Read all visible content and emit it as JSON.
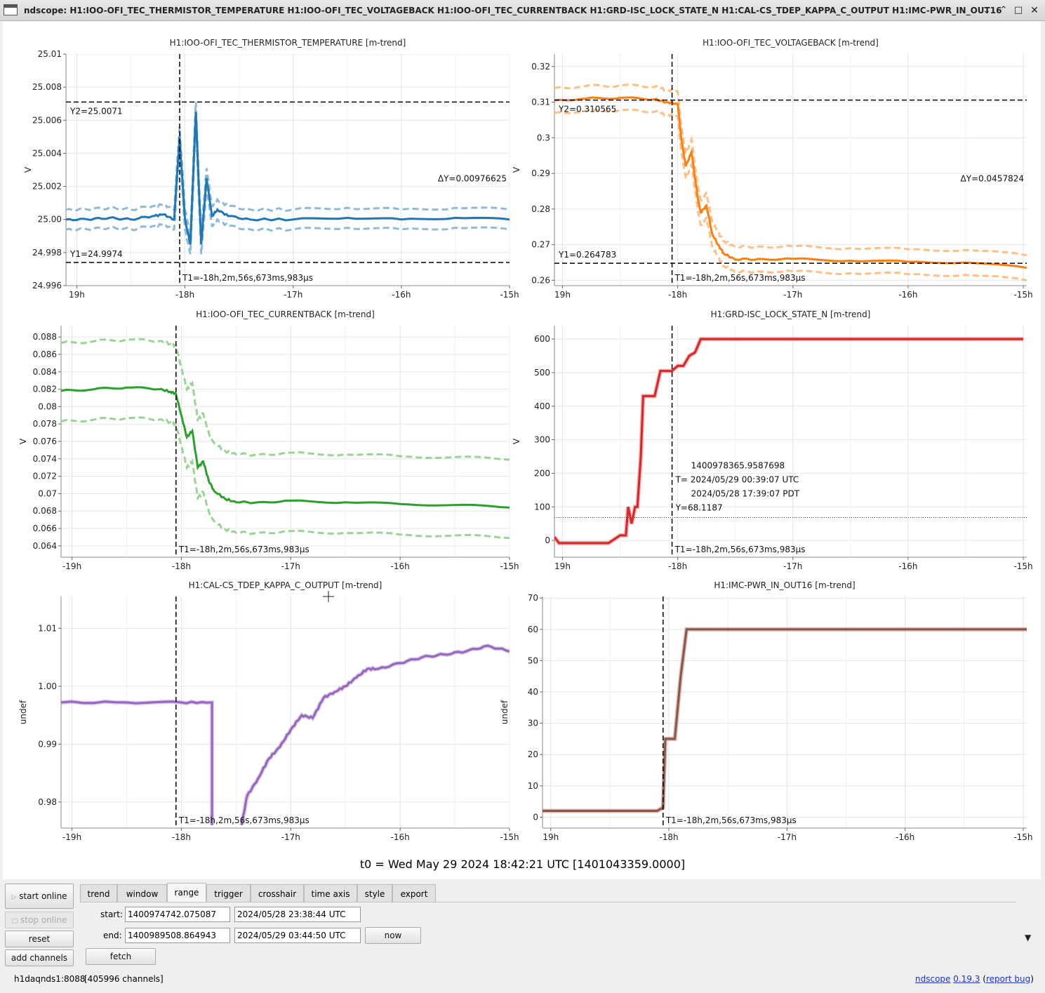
{
  "window": {
    "title": "ndscope: H1:IOO-OFI_TEC_THERMISTOR_TEMPERATURE H1:IOO-OFI_TEC_VOLTAGEBACK H1:IOO-OFI_TEC_CURRENTBACK H1:GRD-ISC_LOCK_STATE_N H1:CAL-CS_TDEP_KAPPA_C_OUTPUT H1:IMC-PWR_IN_OUT16",
    "minimize_icon": "chevron-down-icon",
    "maximize_icon": "square-icon",
    "close_icon": "close-icon"
  },
  "cursor_label": "T1=-18h,2m,56s,673ms,983µs",
  "x_ticks": [
    "-19h",
    "-18h",
    "-17h",
    "-16h",
    "-15h"
  ],
  "x_ticks_alt": [
    "19h",
    "-18h",
    "-17h",
    "-16h",
    "-15h"
  ],
  "chart_data": [
    {
      "type": "line",
      "title": "H1:IOO-OFI_TEC_THERMISTOR_TEMPERATURE [m-trend]",
      "ylabel": "V",
      "ylim": [
        24.996,
        25.01
      ],
      "y_ticks": [
        "24.996",
        "24.998",
        "25.00",
        "25.002",
        "25.004",
        "25.006",
        "25.008",
        "25.01"
      ],
      "y_tick_values": [
        24.996,
        24.998,
        25.0,
        25.002,
        25.004,
        25.006,
        25.008,
        25.01
      ],
      "xlim": [
        -19.1,
        -15.0
      ],
      "color": "#1f77b4",
      "band_color": "#8fbbd9",
      "x": [
        -19.1,
        -18.9,
        -18.7,
        -18.5,
        -18.3,
        -18.2,
        -18.1,
        -18.05,
        -18.0,
        -17.95,
        -17.9,
        -17.85,
        -17.8,
        -17.75,
        -17.7,
        -17.6,
        -17.4,
        -17.0,
        -16.5,
        -16.0,
        -15.5,
        -15.0
      ],
      "values": [
        25.0,
        25.0,
        25.0001,
        25.0,
        25.0002,
        25.0003,
        25.0,
        25.005,
        25.0,
        24.9985,
        25.0065,
        24.9985,
        25.0025,
        25.0002,
        25.0006,
        25.0002,
        25.0,
        25.0,
        25.0001,
        25.0,
        25.0001,
        25.0
      ],
      "band": 0.0006,
      "cursors": {
        "t1": -18.049,
        "y1": 24.9974,
        "y2": 25.0071
      },
      "annotations": {
        "y1": "Y1=24.9974",
        "y2": "Y2=25.0071",
        "dy": "ΔY=0.00976625"
      },
      "x_tick_labels": [
        "19h",
        "-18h",
        "-17h",
        "-16h",
        "-15h"
      ]
    },
    {
      "type": "line",
      "title": "H1:IOO-OFI_TEC_VOLTAGEBACK [m-trend]",
      "ylabel": "V",
      "ylim": [
        0.2585,
        0.3235
      ],
      "y_ticks": [
        "0.26",
        "0.27",
        "0.28",
        "0.29",
        "0.3",
        "0.31",
        "0.32"
      ],
      "y_tick_values": [
        0.26,
        0.27,
        0.28,
        0.29,
        0.3,
        0.31,
        0.32
      ],
      "xlim": [
        -19.07,
        -14.97
      ],
      "color": "#ff7f0e",
      "band_color": "#ffbf86",
      "x": [
        -19.07,
        -18.8,
        -18.5,
        -18.2,
        -18.1,
        -18.0,
        -17.97,
        -17.93,
        -17.88,
        -17.83,
        -17.8,
        -17.75,
        -17.7,
        -17.65,
        -17.6,
        -17.5,
        -17.3,
        -17.0,
        -16.5,
        -16.0,
        -15.5,
        -14.97
      ],
      "values": [
        0.3105,
        0.311,
        0.3112,
        0.3108,
        0.31,
        0.3095,
        0.3,
        0.292,
        0.296,
        0.284,
        0.279,
        0.281,
        0.273,
        0.27,
        0.2675,
        0.2658,
        0.266,
        0.266,
        0.2655,
        0.2652,
        0.265,
        0.2635
      ],
      "band": 0.0035,
      "cursors": {
        "t1": -18.049,
        "y1": 0.264783,
        "y2": 0.310565
      },
      "annotations": {
        "y1": "Y1=0.264783",
        "y2": "Y2=0.310565",
        "dy": "ΔY=0.0457824"
      },
      "x_tick_labels": [
        "19h",
        "-18h",
        "-17h",
        "-16h",
        "-15h"
      ]
    },
    {
      "type": "line",
      "title": "H1:IOO-OFI_TEC_CURRENTBACK [m-trend]",
      "ylabel": "V",
      "ylim": [
        0.0627,
        0.0893
      ],
      "y_ticks": [
        "0.064",
        "0.066",
        "0.068",
        "0.07",
        "0.072",
        "0.074",
        "0.076",
        "0.078",
        "0.08",
        "0.082",
        "0.084",
        "0.086",
        "0.088"
      ],
      "y_tick_values": [
        0.064,
        0.066,
        0.068,
        0.07,
        0.072,
        0.074,
        0.076,
        0.078,
        0.08,
        0.082,
        0.084,
        0.086,
        0.088
      ],
      "xlim": [
        -19.1,
        -15.0
      ],
      "color": "#2ca02c",
      "band_color": "#98d595",
      "x": [
        -19.1,
        -18.8,
        -18.5,
        -18.2,
        -18.1,
        -18.05,
        -18.0,
        -17.95,
        -17.9,
        -17.85,
        -17.8,
        -17.75,
        -17.7,
        -17.6,
        -17.5,
        -17.3,
        -17.0,
        -16.5,
        -16.0,
        -15.5,
        -15.0
      ],
      "values": [
        0.0818,
        0.082,
        0.0822,
        0.082,
        0.0817,
        0.0815,
        0.079,
        0.0765,
        0.0772,
        0.073,
        0.0737,
        0.0715,
        0.0703,
        0.0694,
        0.069,
        0.069,
        0.0692,
        0.069,
        0.0688,
        0.0687,
        0.0684
      ],
      "band_upper": 0.0055,
      "band_lower": 0.0035,
      "cursors": {
        "t1": -18.049
      },
      "x_tick_labels": [
        "-19h",
        "-18h",
        "-17h",
        "-16h",
        "-15h"
      ]
    },
    {
      "type": "line",
      "title": "H1:GRD-ISC_LOCK_STATE_N [m-trend]",
      "ylabel": "V",
      "ylim": [
        -50,
        640
      ],
      "y_ticks": [
        "0",
        "100",
        "200",
        "300",
        "400",
        "500",
        "600"
      ],
      "y_tick_values": [
        0,
        100,
        200,
        300,
        400,
        500,
        600
      ],
      "xlim": [
        -19.07,
        -14.97
      ],
      "color": "#d62728",
      "band_color": "#eb9293",
      "x": [
        -19.07,
        -19.03,
        -19.0,
        -18.6,
        -18.5,
        -18.45,
        -18.43,
        -18.4,
        -18.37,
        -18.35,
        -18.32,
        -18.3,
        -18.27,
        -18.25,
        -18.2,
        -18.15,
        -18.1,
        -18.05,
        -18.0,
        -17.95,
        -17.9,
        -17.85,
        -17.8,
        -17.75,
        -17.7,
        -17.65,
        -15.0
      ],
      "values": [
        10,
        -8,
        -8,
        -8,
        15,
        15,
        100,
        50,
        100,
        100,
        250,
        430,
        430,
        430,
        430,
        505,
        505,
        505,
        520,
        520,
        550,
        560,
        600,
        600,
        600,
        600,
        600
      ],
      "cursors": {
        "t1": -18.049,
        "crosshair_y": 68.1187
      },
      "crosshair": {
        "gps": "1400978365.9587698",
        "utc": "T= 2024/05/29 00:39:07 UTC",
        "local": "2024/05/28 17:39:07 PDT",
        "y": "Y=68.1187"
      },
      "x_tick_labels": [
        "19h",
        "-18h",
        "-17h",
        "-16h",
        "-15h"
      ]
    },
    {
      "type": "line",
      "title": "H1:CAL-CS_TDEP_KAPPA_C_OUTPUT [m-trend]",
      "ylabel": "undef",
      "ylim": [
        0.9755,
        1.0155
      ],
      "y_ticks": [
        "0.98",
        "0.99",
        "1.00",
        "1.01"
      ],
      "y_tick_values": [
        0.98,
        0.99,
        1.0,
        1.01
      ],
      "xlim": [
        -19.1,
        -15.0
      ],
      "color": "#9467bd",
      "band_color": "#c9b1de",
      "x": [
        -19.1,
        -18.5,
        -18.0,
        -17.72,
        -17.72,
        -17.7,
        -17.45,
        -17.4,
        -17.3,
        -17.2,
        -17.1,
        -17.0,
        -16.9,
        -16.8,
        -16.7,
        -16.6,
        -16.5,
        -16.4,
        -16.3,
        -16.2,
        -16.0,
        -15.8,
        -15.6,
        -15.4,
        -15.2,
        -15.0
      ],
      "values": [
        0.9972,
        0.9972,
        0.9972,
        0.9972,
        0.976,
        null,
        0.976,
        0.981,
        0.984,
        0.9875,
        0.9895,
        0.9925,
        0.995,
        0.9945,
        0.998,
        0.999,
        1.0,
        1.0015,
        1.003,
        1.003,
        1.004,
        1.005,
        1.0055,
        1.006,
        1.007,
        1.006
      ],
      "cursors": {
        "t1": -18.049
      },
      "x_tick_labels": [
        "-19h",
        "-18h",
        "-17h",
        "-16h",
        "-15h"
      ]
    },
    {
      "type": "line",
      "title": "H1:IMC-PWR_IN_OUT16 [m-trend]",
      "ylabel": "undef",
      "ylim": [
        -3.5,
        70.5
      ],
      "y_ticks": [
        "0",
        "10",
        "20",
        "30",
        "40",
        "50",
        "60",
        "70"
      ],
      "y_tick_values": [
        0,
        10,
        20,
        30,
        40,
        50,
        60,
        70
      ],
      "xlim": [
        -19.07,
        -14.97
      ],
      "color": "#8c564b",
      "band_color": "#c49c94",
      "x": [
        -19.07,
        -18.5,
        -18.1,
        -18.05,
        -18.03,
        -18.0,
        -17.95,
        -17.9,
        -17.85,
        -17.8,
        -17.5,
        -17.0,
        -16.5,
        -16.0,
        -15.5,
        -14.97
      ],
      "values": [
        2,
        2,
        2,
        3,
        25,
        25,
        25,
        45,
        60,
        60,
        60,
        60,
        60,
        60,
        60,
        60
      ],
      "cursors": {
        "t1": -18.049
      },
      "x_tick_labels": [
        "19h",
        "-18h",
        "-17h",
        "-16h",
        "-15h"
      ]
    }
  ],
  "t0": "t0 = Wed May 29 2024 18:42:21 UTC [1401043359.0000]",
  "controls": {
    "start_online": "start online",
    "stop_online": "stop online",
    "reset": "reset",
    "add_channels": "add channels",
    "fetch": "fetch",
    "now": "now",
    "play_icon": "play-icon",
    "stop_icon": "stop-icon",
    "tabs": [
      "trend",
      "window",
      "range",
      "trigger",
      "crosshair",
      "time axis",
      "style",
      "export"
    ],
    "active_tab": "range",
    "start_label": "start:",
    "end_label": "end:",
    "start_gps": "1400974742.075087",
    "start_date": "2024/05/28 23:38:44 UTC",
    "end_gps": "1400989508.864943",
    "end_date": "2024/05/29 03:44:50 UTC",
    "expand_icon": "triangle-down-icon"
  },
  "status": {
    "server": "h1daqnds1:8088",
    "channels": "[405996 channels]",
    "app_name": "ndscope",
    "version": "0.19.3",
    "report_bug": "report bug",
    "paren_open": "(",
    "paren_close": ")"
  }
}
